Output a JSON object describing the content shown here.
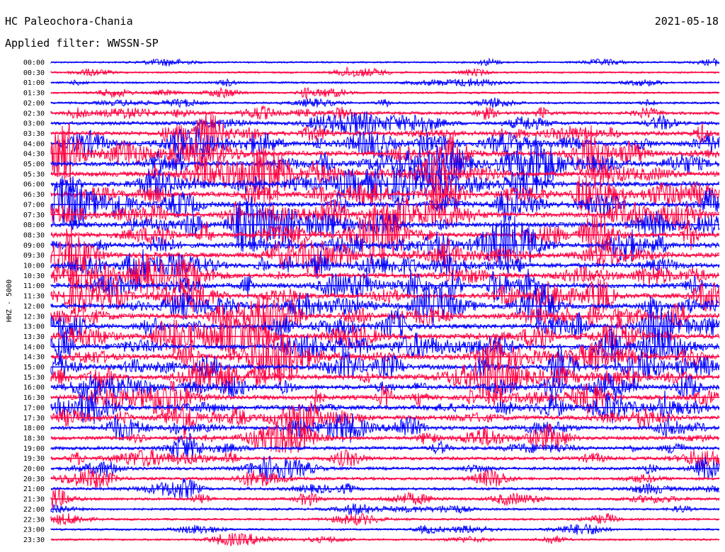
{
  "header": {
    "station": "HC Paleochora-Chania",
    "date": "2021-05-18",
    "filter": "Applied filter: WWSSN-SP"
  },
  "chart_data": {
    "type": "line",
    "ylabel": "HHZ - 5000",
    "colors": {
      "even_rows": "#0000ff",
      "odd_rows": "#ff0040"
    },
    "rows": [
      "00:00",
      "00:30",
      "01:00",
      "01:30",
      "02:00",
      "02:30",
      "03:00",
      "03:30",
      "04:00",
      "04:30",
      "05:00",
      "05:30",
      "06:00",
      "06:30",
      "07:00",
      "07:30",
      "08:00",
      "08:30",
      "09:00",
      "09:30",
      "10:00",
      "10:30",
      "11:00",
      "11:30",
      "12:00",
      "12:30",
      "13:00",
      "13:30",
      "14:00",
      "14:30",
      "15:00",
      "15:30",
      "16:00",
      "16:30",
      "17:00",
      "17:30",
      "18:00",
      "18:30",
      "19:00",
      "19:30",
      "20:00",
      "20:30",
      "21:00",
      "21:30",
      "22:00",
      "22:30",
      "23:00",
      "23:30"
    ],
    "activity": [
      0.15,
      0.15,
      0.2,
      0.2,
      0.25,
      0.5,
      0.6,
      0.8,
      0.9,
      1.0,
      1.0,
      1.0,
      1.0,
      1.0,
      1.0,
      1.0,
      1.0,
      1.0,
      1.0,
      1.0,
      1.0,
      1.0,
      1.0,
      1.0,
      1.0,
      1.0,
      1.0,
      1.0,
      1.0,
      1.0,
      1.0,
      1.0,
      0.9,
      0.9,
      0.85,
      0.8,
      0.7,
      0.65,
      0.6,
      0.55,
      0.5,
      0.45,
      0.45,
      0.4,
      0.3,
      0.25,
      0.2,
      0.2
    ]
  }
}
